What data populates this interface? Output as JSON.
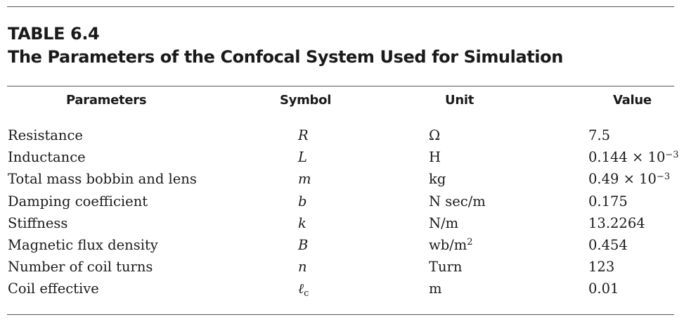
{
  "caption": {
    "label": "TABLE 6.4",
    "title": "The Parameters of the Confocal System Used for Simulation"
  },
  "table": {
    "headers": [
      "Parameters",
      "Symbol",
      "Unit",
      "Value"
    ],
    "rows": [
      {
        "parameter": "Resistance",
        "symbol": "R",
        "symbol_sub": "",
        "unit": "Ω",
        "unit_sup": "",
        "value": "7.5",
        "value_exp": ""
      },
      {
        "parameter": "Inductance",
        "symbol": "L",
        "symbol_sub": "",
        "unit": "H",
        "unit_sup": "",
        "value": "0.144 × 10",
        "value_exp": "−3"
      },
      {
        "parameter": "Total mass bobbin and lens",
        "symbol": "m",
        "symbol_sub": "",
        "unit": "kg",
        "unit_sup": "",
        "value": "0.49 × 10",
        "value_exp": "−3"
      },
      {
        "parameter": "Damping coefficient",
        "symbol": "b",
        "symbol_sub": "",
        "unit": "N sec/m",
        "unit_sup": "",
        "value": "0.175",
        "value_exp": ""
      },
      {
        "parameter": "Stiffness",
        "symbol": "k",
        "symbol_sub": "",
        "unit": "N/m",
        "unit_sup": "",
        "value": "13.2264",
        "value_exp": ""
      },
      {
        "parameter": "Magnetic flux density",
        "symbol": "B",
        "symbol_sub": "",
        "unit": "wb/m",
        "unit_sup": "2",
        "value": "0.454",
        "value_exp": ""
      },
      {
        "parameter": "Number of coil turns",
        "symbol": "n",
        "symbol_sub": "",
        "unit": "Turn",
        "unit_sup": "",
        "value": "123",
        "value_exp": ""
      },
      {
        "parameter": "Coil effective",
        "symbol": "ℓ",
        "symbol_sub": "c",
        "unit": "m",
        "unit_sup": "",
        "value": "0.01",
        "value_exp": ""
      }
    ]
  }
}
